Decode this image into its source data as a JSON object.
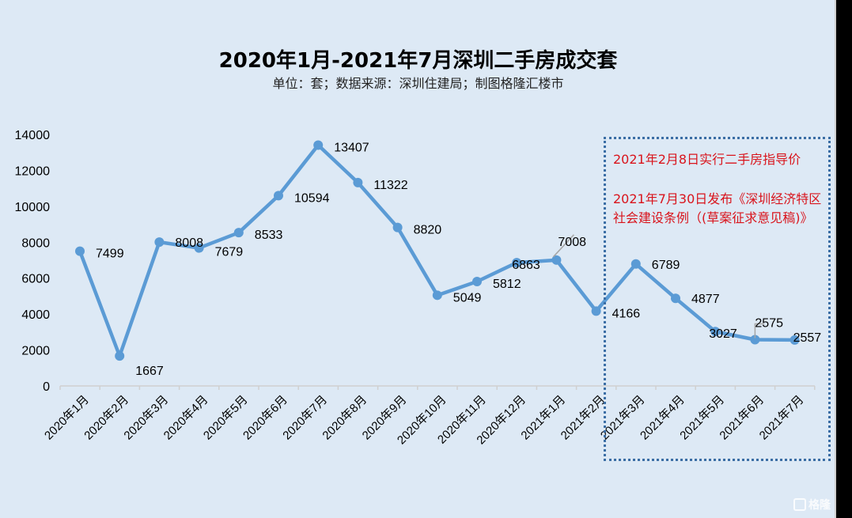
{
  "header": {
    "title": "2020年1月-2021年7月深圳二手房成交套",
    "subtitle": "单位：套；数据来源：深圳住建局；制图格隆汇楼市"
  },
  "annotations": {
    "note1": "2021年2月8日实行二手房指导价",
    "note2": "2021年7月30日发布《深圳经济特区社会建设条例（(草案征求意见稿)》"
  },
  "watermark": "格隆",
  "colors": {
    "line": "#5b9bd5",
    "background": "#dde9f5",
    "annotation_text": "#d9141c",
    "annotation_border": "#3b6ea5"
  },
  "chart_data": {
    "type": "line",
    "title": "2020年1月-2021年7月深圳二手房成交套",
    "subtitle": "单位：套；数据来源：深圳住建局；制图格隆汇楼市",
    "xlabel": "",
    "ylabel": "",
    "ylim": [
      0,
      14000
    ],
    "yticks": [
      0,
      2000,
      4000,
      6000,
      8000,
      10000,
      12000,
      14000
    ],
    "grid": false,
    "legend": "none",
    "categories": [
      "2020年1月",
      "2020年2月",
      "2020年3月",
      "2020年4月",
      "2020年5月",
      "2020年6月",
      "2020年7月",
      "2020年8月",
      "2020年9月",
      "2020年10月",
      "2020年11月",
      "2020年12月",
      "2021年1月",
      "2021年2月",
      "2021年3月",
      "2021年4月",
      "2021年5月",
      "2021年6月",
      "2021年7月"
    ],
    "series": [
      {
        "name": "深圳二手房成交套数",
        "values": [
          7499,
          1667,
          8008,
          7679,
          8533,
          10594,
          13407,
          11322,
          8820,
          5049,
          5812,
          6863,
          7008,
          4166,
          6789,
          4877,
          3027,
          2575,
          2557
        ]
      }
    ],
    "annotations": [
      "2021年2月8日实行二手房指导价",
      "2021年7月30日发布《深圳经济特区社会建设条例（(草案征求意见稿)》"
    ]
  }
}
